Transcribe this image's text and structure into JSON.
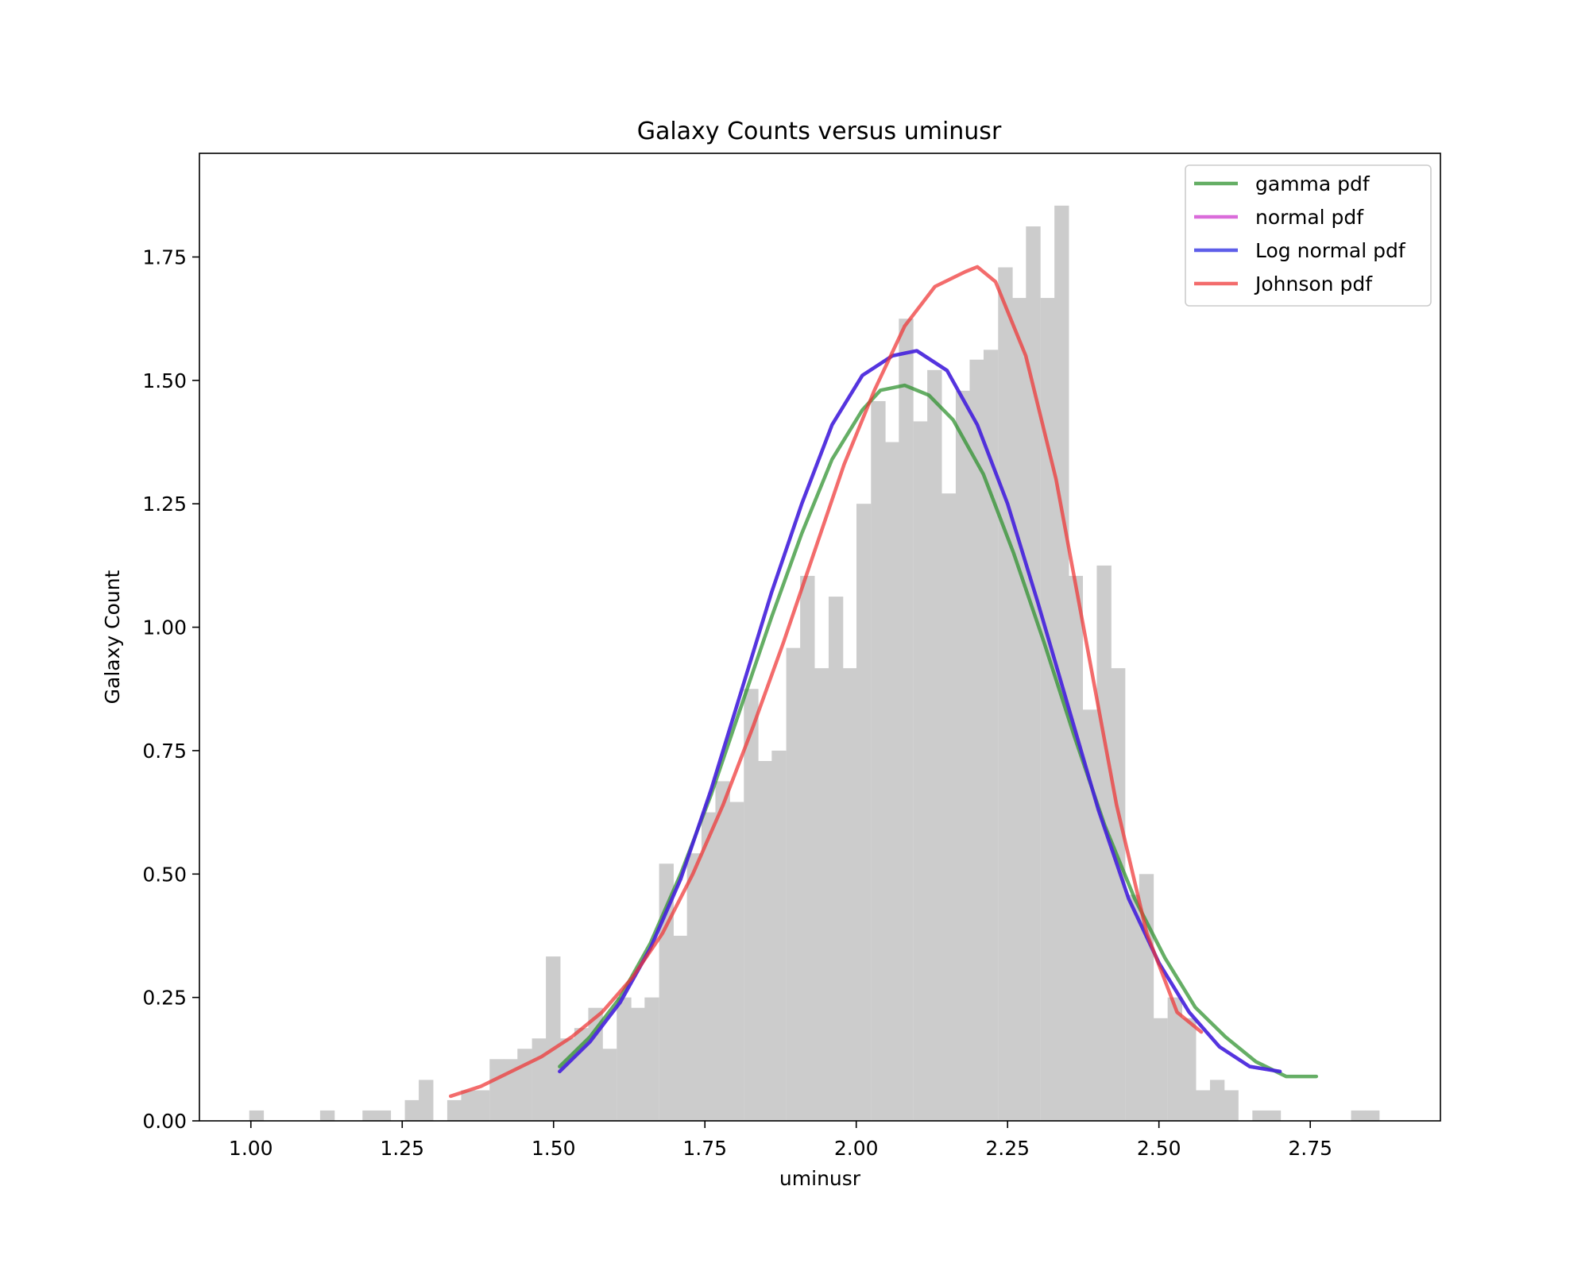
{
  "chart_data": {
    "type": "bar",
    "title": "Galaxy Counts versus uminusr",
    "xlabel": "uminusr",
    "ylabel": "Galaxy Count",
    "xlim": [
      0.915,
      2.965
    ],
    "ylim": [
      0,
      1.96
    ],
    "xticks": [
      1.0,
      1.25,
      1.5,
      1.75,
      2.0,
      2.25,
      2.5,
      2.75
    ],
    "xtick_labels": [
      "1.00",
      "1.25",
      "1.50",
      "1.75",
      "2.00",
      "2.25",
      "2.50",
      "2.75"
    ],
    "yticks": [
      0,
      0.25,
      0.5,
      0.75,
      1.0,
      1.25,
      1.5,
      1.75
    ],
    "ytick_labels": [
      "0.00",
      "0.25",
      "0.50",
      "0.75",
      "1.00",
      "1.25",
      "1.50",
      "1.75"
    ],
    "grid": false,
    "legend_position": "top-right",
    "histogram": {
      "color": "#cccccc",
      "bin_width": 0.0233,
      "bins": [
        [
          1.009,
          0.021
        ],
        [
          1.126,
          0.021
        ],
        [
          1.196,
          0.021
        ],
        [
          1.219,
          0.021
        ],
        [
          1.266,
          0.042
        ],
        [
          1.289,
          0.083
        ],
        [
          1.336,
          0.042
        ],
        [
          1.359,
          0.062
        ],
        [
          1.382,
          0.062
        ],
        [
          1.406,
          0.125
        ],
        [
          1.429,
          0.125
        ],
        [
          1.452,
          0.146
        ],
        [
          1.476,
          0.167
        ],
        [
          1.499,
          0.333
        ],
        [
          1.522,
          0.167
        ],
        [
          1.546,
          0.188
        ],
        [
          1.569,
          0.229
        ],
        [
          1.592,
          0.146
        ],
        [
          1.616,
          0.25
        ],
        [
          1.639,
          0.229
        ],
        [
          1.662,
          0.25
        ],
        [
          1.686,
          0.521
        ],
        [
          1.709,
          0.375
        ],
        [
          1.732,
          0.542
        ],
        [
          1.756,
          0.625
        ],
        [
          1.779,
          0.688
        ],
        [
          1.802,
          0.646
        ],
        [
          1.826,
          0.875
        ],
        [
          1.849,
          0.729
        ],
        [
          1.872,
          0.75
        ],
        [
          1.896,
          0.958
        ],
        [
          1.919,
          1.104
        ],
        [
          1.942,
          0.917
        ],
        [
          1.966,
          1.062
        ],
        [
          1.989,
          0.917
        ],
        [
          2.012,
          1.25
        ],
        [
          2.036,
          1.458
        ],
        [
          2.059,
          1.375
        ],
        [
          2.082,
          1.625
        ],
        [
          2.106,
          1.417
        ],
        [
          2.129,
          1.521
        ],
        [
          2.152,
          1.271
        ],
        [
          2.176,
          1.479
        ],
        [
          2.199,
          1.542
        ],
        [
          2.222,
          1.562
        ],
        [
          2.246,
          1.729
        ],
        [
          2.269,
          1.667
        ],
        [
          2.292,
          1.812
        ],
        [
          2.316,
          1.667
        ],
        [
          2.339,
          1.854
        ],
        [
          2.362,
          1.104
        ],
        [
          2.386,
          0.833
        ],
        [
          2.409,
          1.125
        ],
        [
          2.432,
          0.917
        ],
        [
          2.456,
          0.458
        ],
        [
          2.479,
          0.5
        ],
        [
          2.502,
          0.208
        ],
        [
          2.526,
          0.25
        ],
        [
          2.549,
          0.208
        ],
        [
          2.572,
          0.062
        ],
        [
          2.596,
          0.083
        ],
        [
          2.619,
          0.062
        ],
        [
          2.666,
          0.021
        ],
        [
          2.689,
          0.021
        ],
        [
          2.829,
          0.021
        ],
        [
          2.852,
          0.021
        ]
      ]
    },
    "series": [
      {
        "name": "gamma pdf",
        "type": "line",
        "color": "#2a8f2a",
        "x": [
          1.51,
          1.56,
          1.61,
          1.66,
          1.71,
          1.76,
          1.81,
          1.86,
          1.91,
          1.96,
          2.01,
          2.04,
          2.08,
          2.12,
          2.16,
          2.21,
          2.26,
          2.31,
          2.36,
          2.41,
          2.46,
          2.51,
          2.56,
          2.61,
          2.66,
          2.71,
          2.76
        ],
        "y": [
          0.11,
          0.17,
          0.25,
          0.36,
          0.5,
          0.66,
          0.84,
          1.02,
          1.19,
          1.34,
          1.44,
          1.48,
          1.49,
          1.47,
          1.42,
          1.31,
          1.15,
          0.97,
          0.78,
          0.6,
          0.45,
          0.33,
          0.23,
          0.17,
          0.12,
          0.09,
          0.09
        ]
      },
      {
        "name": "normal pdf",
        "type": "line",
        "color": "#cc33cc",
        "x": [
          1.51,
          1.56,
          1.61,
          1.66,
          1.71,
          1.76,
          1.81,
          1.86,
          1.91,
          1.96,
          2.01,
          2.06,
          2.1,
          2.15,
          2.2,
          2.25,
          2.3,
          2.35,
          2.4,
          2.45,
          2.5,
          2.55,
          2.6,
          2.65,
          2.7
        ],
        "y": [
          0.1,
          0.16,
          0.24,
          0.35,
          0.49,
          0.67,
          0.87,
          1.07,
          1.25,
          1.41,
          1.51,
          1.55,
          1.56,
          1.52,
          1.41,
          1.25,
          1.05,
          0.84,
          0.63,
          0.45,
          0.32,
          0.22,
          0.15,
          0.11,
          0.1
        ]
      },
      {
        "name": "Log normal pdf",
        "type": "line",
        "color": "#2020e0",
        "x": [
          1.51,
          1.56,
          1.61,
          1.66,
          1.71,
          1.76,
          1.81,
          1.86,
          1.91,
          1.96,
          2.01,
          2.06,
          2.1,
          2.15,
          2.2,
          2.25,
          2.3,
          2.35,
          2.4,
          2.45,
          2.5,
          2.55,
          2.6,
          2.65,
          2.7
        ],
        "y": [
          0.1,
          0.16,
          0.24,
          0.35,
          0.49,
          0.67,
          0.87,
          1.07,
          1.25,
          1.41,
          1.51,
          1.55,
          1.56,
          1.52,
          1.41,
          1.25,
          1.05,
          0.84,
          0.63,
          0.45,
          0.32,
          0.22,
          0.15,
          0.11,
          0.1
        ]
      },
      {
        "name": "Johnson pdf",
        "type": "line",
        "color": "#ee3333",
        "x": [
          1.33,
          1.38,
          1.43,
          1.48,
          1.53,
          1.58,
          1.63,
          1.68,
          1.73,
          1.78,
          1.83,
          1.88,
          1.93,
          1.98,
          2.03,
          2.08,
          2.13,
          2.18,
          2.2,
          2.23,
          2.28,
          2.33,
          2.38,
          2.43,
          2.48,
          2.53,
          2.57
        ],
        "y": [
          0.05,
          0.07,
          0.1,
          0.13,
          0.17,
          0.22,
          0.29,
          0.38,
          0.5,
          0.64,
          0.8,
          0.97,
          1.15,
          1.33,
          1.48,
          1.61,
          1.69,
          1.72,
          1.73,
          1.7,
          1.55,
          1.3,
          0.97,
          0.64,
          0.38,
          0.22,
          0.18
        ]
      }
    ]
  }
}
